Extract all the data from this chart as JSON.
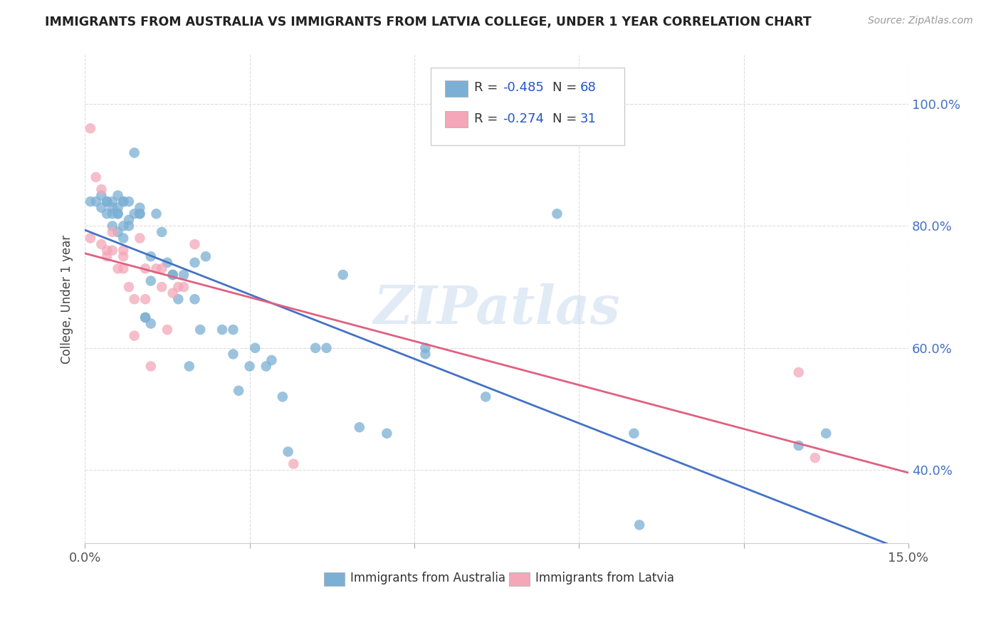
{
  "title": "IMMIGRANTS FROM AUSTRALIA VS IMMIGRANTS FROM LATVIA COLLEGE, UNDER 1 YEAR CORRELATION CHART",
  "source": "Source: ZipAtlas.com",
  "ylabel": "College, Under 1 year",
  "legend_bottom_labels": [
    "Immigrants from Australia",
    "Immigrants from Latvia"
  ],
  "australia_color": "#7bafd4",
  "latvia_color": "#f4a7b9",
  "australia_line_color": "#4472c4",
  "latvia_line_color": "#e06080",
  "legend_R_australia": "-0.485",
  "legend_N_australia": "68",
  "legend_R_latvia": "-0.274",
  "legend_N_latvia": "31",
  "xlim": [
    0.0,
    0.15
  ],
  "ylim": [
    0.28,
    1.08
  ],
  "xtick_labels": [
    "0.0%",
    "",
    "",
    "",
    "",
    "15.0%"
  ],
  "ytick_right_labels": [
    "40.0%",
    "60.0%",
    "80.0%",
    "100.0%"
  ],
  "australia_x": [
    0.001,
    0.002,
    0.003,
    0.003,
    0.004,
    0.004,
    0.004,
    0.005,
    0.005,
    0.005,
    0.005,
    0.006,
    0.006,
    0.006,
    0.006,
    0.006,
    0.007,
    0.007,
    0.007,
    0.007,
    0.008,
    0.008,
    0.008,
    0.009,
    0.009,
    0.01,
    0.01,
    0.01,
    0.011,
    0.011,
    0.012,
    0.012,
    0.012,
    0.013,
    0.014,
    0.015,
    0.016,
    0.016,
    0.017,
    0.018,
    0.019,
    0.02,
    0.02,
    0.021,
    0.022,
    0.025,
    0.027,
    0.027,
    0.028,
    0.03,
    0.031,
    0.033,
    0.034,
    0.036,
    0.037,
    0.042,
    0.044,
    0.047,
    0.05,
    0.055,
    0.062,
    0.062,
    0.073,
    0.086,
    0.1,
    0.101,
    0.13,
    0.135
  ],
  "australia_y": [
    0.84,
    0.84,
    0.83,
    0.85,
    0.82,
    0.84,
    0.84,
    0.8,
    0.82,
    0.84,
    0.83,
    0.79,
    0.82,
    0.83,
    0.85,
    0.82,
    0.78,
    0.8,
    0.84,
    0.84,
    0.81,
    0.8,
    0.84,
    0.82,
    0.92,
    0.82,
    0.82,
    0.83,
    0.65,
    0.65,
    0.71,
    0.75,
    0.64,
    0.82,
    0.79,
    0.74,
    0.72,
    0.72,
    0.68,
    0.72,
    0.57,
    0.68,
    0.74,
    0.63,
    0.75,
    0.63,
    0.59,
    0.63,
    0.53,
    0.57,
    0.6,
    0.57,
    0.58,
    0.52,
    0.43,
    0.6,
    0.6,
    0.72,
    0.47,
    0.46,
    0.59,
    0.6,
    0.52,
    0.82,
    0.46,
    0.31,
    0.44,
    0.46
  ],
  "latvia_x": [
    0.001,
    0.001,
    0.002,
    0.003,
    0.003,
    0.004,
    0.004,
    0.005,
    0.005,
    0.006,
    0.007,
    0.007,
    0.007,
    0.008,
    0.009,
    0.009,
    0.01,
    0.011,
    0.011,
    0.012,
    0.013,
    0.014,
    0.014,
    0.015,
    0.016,
    0.017,
    0.018,
    0.02,
    0.038,
    0.13,
    0.133
  ],
  "latvia_y": [
    0.78,
    0.96,
    0.88,
    0.77,
    0.86,
    0.75,
    0.76,
    0.76,
    0.79,
    0.73,
    0.73,
    0.75,
    0.76,
    0.7,
    0.62,
    0.68,
    0.78,
    0.68,
    0.73,
    0.57,
    0.73,
    0.7,
    0.73,
    0.63,
    0.69,
    0.7,
    0.7,
    0.77,
    0.41,
    0.56,
    0.42
  ],
  "watermark": "ZIPatlas",
  "background_color": "#ffffff",
  "grid_color": "#dddddd"
}
